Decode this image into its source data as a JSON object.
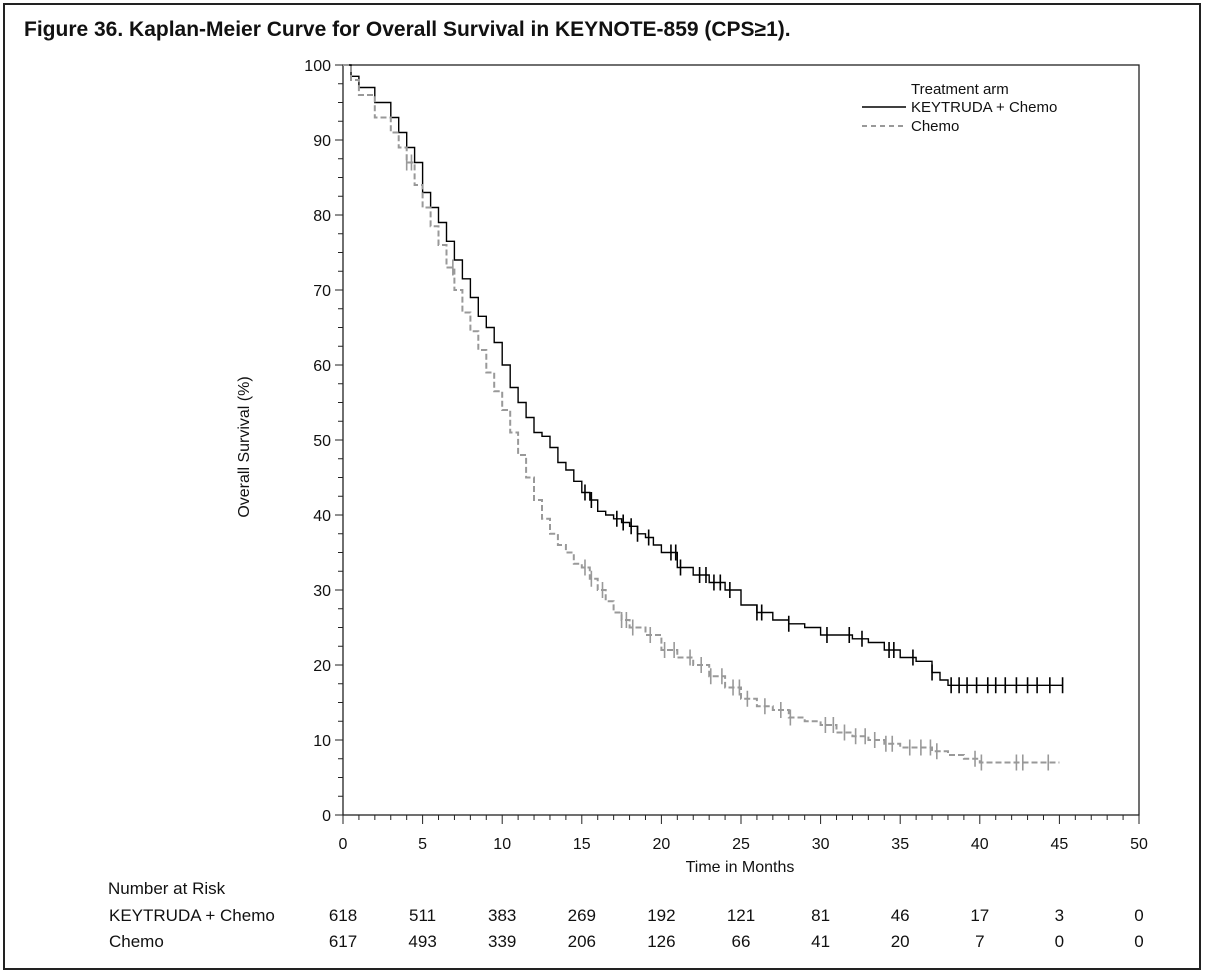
{
  "title": "Figure 36. Kaplan-Meier Curve for Overall Survival in KEYNOTE-859 (CPS≥1).",
  "chart_data": {
    "type": "line",
    "xlabel": "Time in Months",
    "ylabel": "Overall Survival (%)",
    "xlim": [
      0,
      50
    ],
    "ylim": [
      0,
      100
    ],
    "xticks": [
      0,
      5,
      10,
      15,
      20,
      25,
      30,
      35,
      40,
      45,
      50
    ],
    "yticks": [
      0,
      10,
      20,
      30,
      40,
      50,
      60,
      70,
      80,
      90,
      100
    ],
    "legend_title": "Treatment arm",
    "legend_position": "top-right",
    "series": [
      {
        "name": "KEYTRUDA + Chemo",
        "color": "#000000",
        "style": "solid",
        "x": [
          0,
          0.5,
          1,
          2,
          3,
          3.5,
          4,
          4.5,
          5,
          5.5,
          6,
          6.5,
          7,
          7.5,
          8,
          8.5,
          9,
          9.5,
          10,
          10.5,
          11,
          11.5,
          12,
          12.5,
          13,
          13.5,
          14,
          14.5,
          15,
          15.5,
          16,
          16.5,
          17,
          17.5,
          18,
          18.5,
          19,
          19.5,
          20,
          21,
          22,
          23,
          24,
          25,
          26,
          27,
          28,
          29,
          30,
          31,
          32,
          33,
          34,
          35,
          36,
          37,
          37.5,
          38,
          40,
          42,
          44,
          45.2
        ],
        "y": [
          100,
          98.5,
          97,
          95,
          93,
          91,
          89,
          87,
          83,
          81,
          79,
          76.5,
          74,
          71.5,
          69,
          66.5,
          65,
          63,
          60,
          57,
          55,
          53,
          51,
          50.5,
          49,
          47,
          46,
          44.5,
          43,
          42,
          40.5,
          40,
          39.5,
          39,
          38.5,
          37.5,
          37,
          36,
          35,
          33,
          32,
          31,
          30,
          28,
          27,
          26,
          25.5,
          25,
          24,
          24,
          23.5,
          23,
          22,
          21,
          20.5,
          19,
          18,
          17.3,
          17.3,
          17.3,
          17.3,
          17.3
        ],
        "censor_x": [
          15.2,
          15.6,
          17.2,
          17.6,
          18.1,
          18.5,
          19.2,
          20.6,
          20.9,
          21.2,
          22.4,
          22.8,
          23.3,
          23.7,
          24.3,
          26,
          26.3,
          28,
          30.4,
          31.8,
          32.6,
          34.3,
          34.6,
          35.8,
          37,
          38.2,
          38.7,
          39.2,
          39.8,
          40.5,
          41,
          41.6,
          42.3,
          43,
          43.6,
          44.4,
          45.2
        ]
      },
      {
        "name": "Chemo",
        "color": "#999999",
        "style": "dashed",
        "x": [
          0,
          0.5,
          1,
          2,
          3,
          3.5,
          4,
          4.5,
          5,
          5.5,
          6,
          6.5,
          7,
          7.5,
          8,
          8.5,
          9,
          9.5,
          10,
          10.5,
          11,
          11.5,
          12,
          12.5,
          13,
          13.5,
          14,
          14.5,
          15,
          15.5,
          16,
          16.5,
          17,
          17.5,
          18,
          19,
          20,
          21,
          22,
          23,
          24,
          25,
          26,
          27,
          28,
          29,
          30,
          31,
          32,
          33,
          34,
          35,
          36,
          37,
          38,
          39,
          40,
          42,
          44,
          45
        ],
        "y": [
          100,
          98,
          96,
          93,
          91,
          89,
          87,
          84,
          81,
          78.5,
          76,
          73,
          70,
          67,
          64.5,
          62,
          59,
          56.5,
          54,
          51,
          48,
          45,
          42,
          39.5,
          37.5,
          36,
          35,
          33.5,
          33,
          31.5,
          30,
          28.5,
          27,
          26,
          25,
          24,
          22,
          21,
          20,
          18.5,
          17,
          15.5,
          14.5,
          14,
          13,
          12.5,
          12,
          11,
          10.5,
          10,
          9.5,
          9,
          9,
          8.5,
          8,
          7.5,
          7,
          7,
          7,
          7
        ],
        "censor_x": [
          4,
          4.3,
          6.9,
          15.2,
          15.6,
          16.3,
          17.5,
          17.8,
          18.2,
          19.3,
          20.2,
          20.8,
          21.8,
          22.5,
          23.1,
          23.8,
          24.5,
          24.9,
          25.4,
          26.5,
          27.5,
          28.1,
          30.3,
          30.8,
          31.5,
          32.2,
          32.8,
          33.4,
          34.1,
          34.5,
          35.6,
          36.3,
          36.9,
          37.3,
          39.7,
          40.1,
          42.3,
          42.7,
          44.3
        ]
      }
    ],
    "risk_table": {
      "header": "Number at Risk",
      "times": [
        0,
        5,
        10,
        15,
        20,
        25,
        30,
        35,
        40,
        45,
        50
      ],
      "rows": [
        {
          "label": "KEYTRUDA + Chemo",
          "values": [
            "618",
            "511",
            "383",
            "269",
            "192",
            "121",
            "81",
            "46",
            "17",
            "3",
            "0"
          ]
        },
        {
          "label": "Chemo",
          "values": [
            "617",
            "493",
            "339",
            "206",
            "126",
            "66",
            "41",
            "20",
            "7",
            "0",
            "0"
          ]
        }
      ]
    }
  }
}
